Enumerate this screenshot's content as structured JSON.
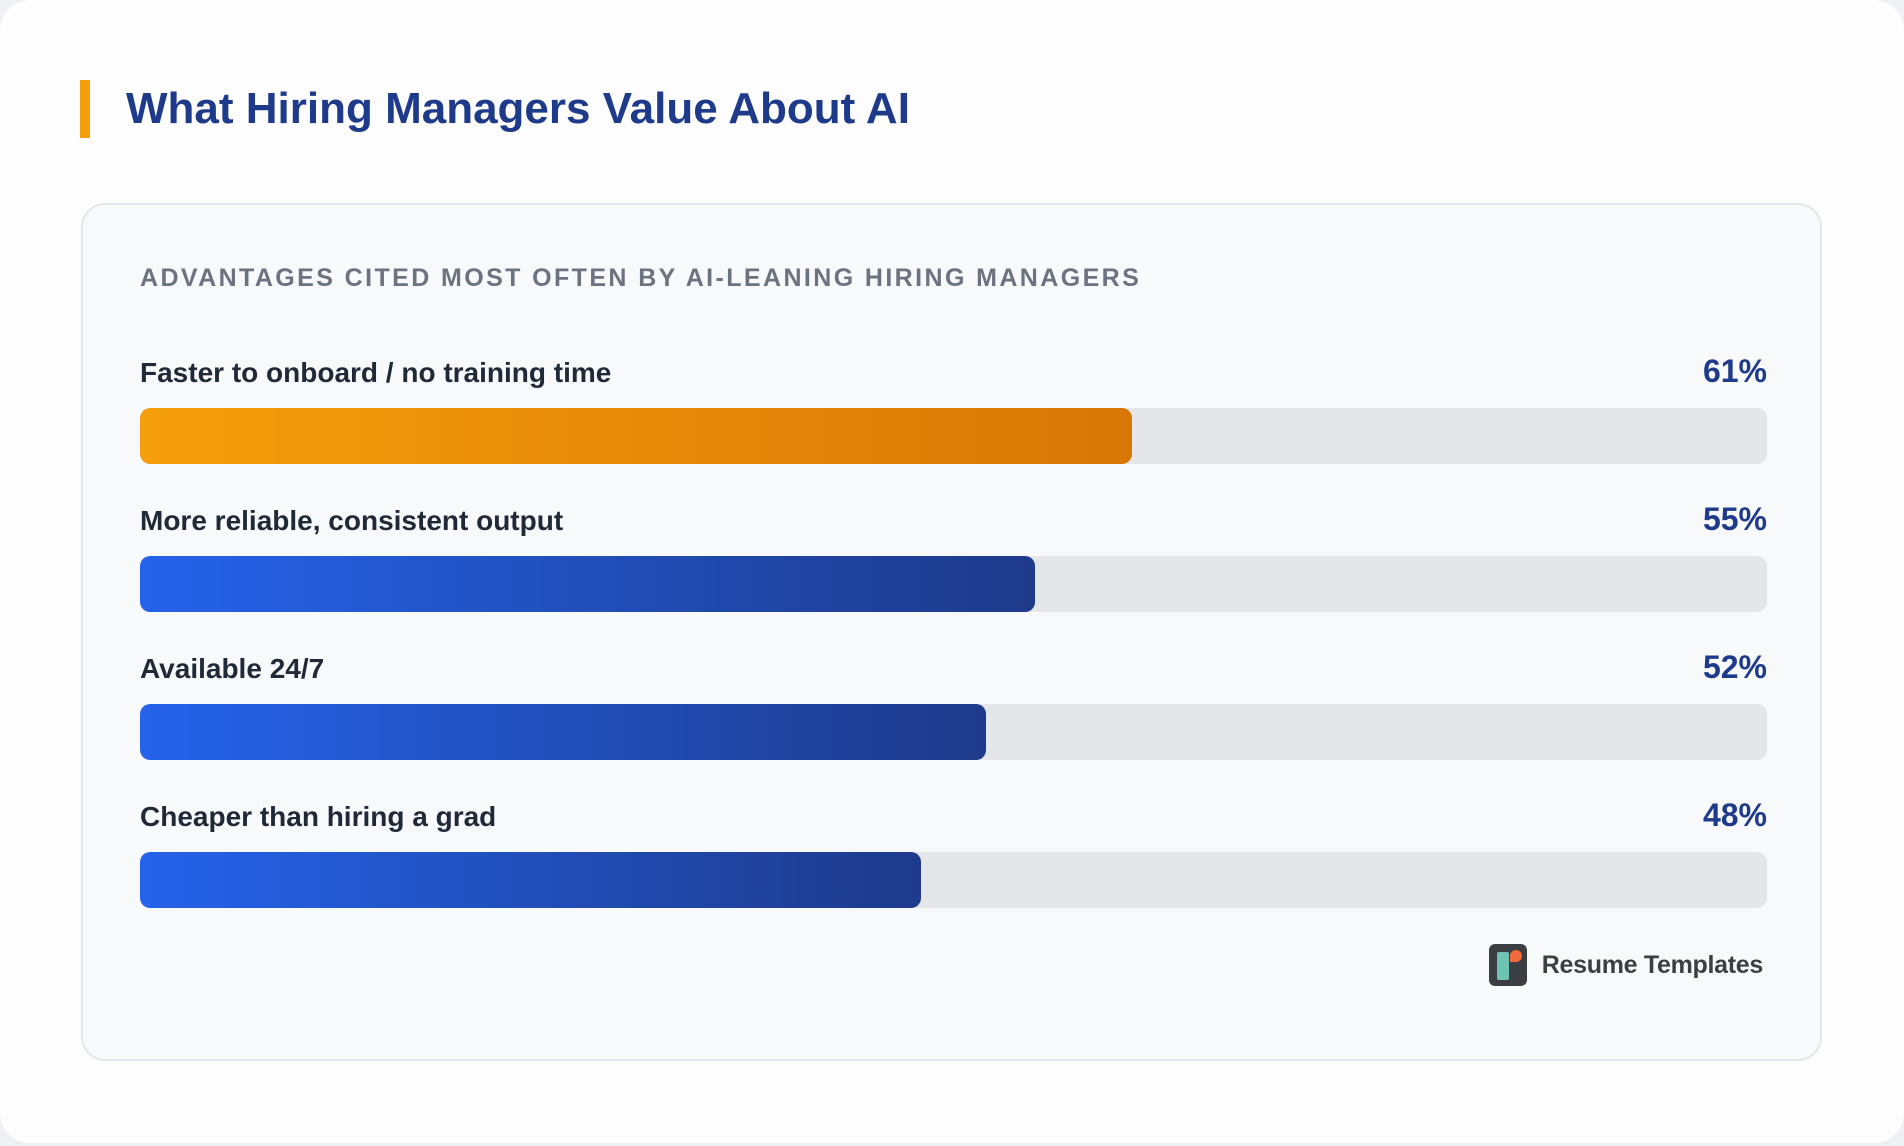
{
  "header": {
    "title": "What Hiring Managers Value About AI"
  },
  "card": {
    "subtitle": "ADVANTAGES CITED MOST OFTEN BY AI-LEANING HIRING MANAGERS"
  },
  "brand": {
    "name": "Resume Templates",
    "logo_icon": "resume-templates-logo-icon"
  },
  "colors": {
    "title": "#1e3a8a",
    "accent": "#f59e0b",
    "highlight_bar_start": "#f59e0b",
    "highlight_bar_end": "#d97706",
    "bar_start": "#2563eb",
    "bar_end": "#1e3a8a",
    "track": "#e5e6ea"
  },
  "chart_data": {
    "type": "bar",
    "orientation": "horizontal",
    "title": "What Hiring Managers Value About AI",
    "subtitle": "ADVANTAGES CITED MOST OFTEN BY AI-LEANING HIRING MANAGERS",
    "categories": [
      "Faster to onboard / no training time",
      "More reliable, consistent output",
      "Available 24/7",
      "Cheaper than hiring a grad"
    ],
    "values": [
      61,
      55,
      52,
      48
    ],
    "value_labels": [
      "61%",
      "55%",
      "52%",
      "48%"
    ],
    "highlighted": [
      true,
      false,
      false,
      false
    ],
    "unit": "%",
    "xlim": [
      0,
      100
    ],
    "grid": false,
    "legend": "none"
  }
}
